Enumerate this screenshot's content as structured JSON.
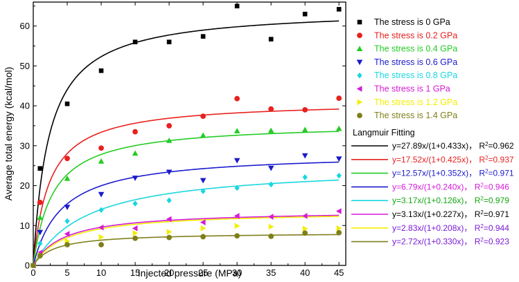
{
  "chart_data": {
    "type": "scatter",
    "xlabel": "Injected pressure (MPa)",
    "ylabel": "Average total energy (kcal/mol)",
    "xlim": [
      0,
      46
    ],
    "ylim": [
      0,
      66
    ],
    "xticks": [
      0,
      5,
      10,
      15,
      20,
      25,
      30,
      35,
      40,
      45
    ],
    "yticks": [
      0,
      10,
      20,
      30,
      40,
      50,
      60
    ],
    "grid": false,
    "legend_position": "right",
    "fit_legend_title": "Langmuir Fitting",
    "series": [
      {
        "name": "The stress is 0 GPa",
        "color": "#000000",
        "marker": "square",
        "x": [
          0,
          1,
          5,
          10,
          15,
          20,
          25,
          30,
          35,
          40,
          45
        ],
        "y": [
          0,
          24.3,
          40.5,
          48.8,
          56.0,
          56.0,
          57.4,
          65.0,
          56.7,
          63.0,
          64.2
        ],
        "fit": {
          "a": 27.89,
          "b": 0.433,
          "label": "y=27.89x/(1+0.433x)， R",
          "r2": "=0.962",
          "color": "#000000",
          "label_color": "#000000"
        }
      },
      {
        "name": "The stress is 0.2 GPa",
        "color": "#e8201e",
        "marker": "circle",
        "x": [
          0,
          1,
          5,
          10,
          15,
          20,
          25,
          30,
          35,
          40,
          45
        ],
        "y": [
          0,
          15.8,
          26.8,
          29.4,
          33.5,
          35.0,
          37.4,
          41.8,
          39.2,
          39.0,
          41.9
        ],
        "fit": {
          "a": 17.52,
          "b": 0.425,
          "label": "y=17.52x/(1+0.425x)， R",
          "r2": "=0.937",
          "color": "#e8201e",
          "label_color": "#e8201e"
        }
      },
      {
        "name": "The stress is 0.4 GPa",
        "color": "#22cc22",
        "marker": "triangle-up",
        "x": [
          0,
          1,
          5,
          10,
          15,
          20,
          25,
          30,
          35,
          40,
          45
        ],
        "y": [
          0,
          12.0,
          21.8,
          26.1,
          28.1,
          31.3,
          32.6,
          33.7,
          33.8,
          34.0,
          34.3
        ],
        "fit": {
          "a": 12.57,
          "b": 0.352,
          "label": "y=12.57x/(1+0.352x)， R",
          "r2": "=0.971",
          "color": "#22cc22",
          "label_color": "#1a1acc"
        }
      },
      {
        "name": "The stress is 0.6 GPa",
        "color": "#1a1acc",
        "marker": "triangle-down",
        "x": [
          0,
          1,
          5,
          10,
          15,
          20,
          25,
          30,
          35,
          40,
          45
        ],
        "y": [
          0,
          8.3,
          14.6,
          17.8,
          21.9,
          23.4,
          21.3,
          26.3,
          24.4,
          27.5,
          26.7
        ],
        "fit": {
          "a": 6.79,
          "b": 0.24,
          "label": "y=6.79x/(1+0.240x)， R",
          "r2": "=0.946",
          "color": "#1a1acc",
          "label_color": "#d61ad6"
        }
      },
      {
        "name": "The stress is 0.8 GPa",
        "color": "#1ad6e0",
        "marker": "diamond",
        "x": [
          0,
          1,
          5,
          10,
          15,
          20,
          25,
          30,
          35,
          40,
          45
        ],
        "y": [
          0,
          5.5,
          11.1,
          13.9,
          15.5,
          16.3,
          18.6,
          19.4,
          20.3,
          22.1,
          22.5
        ],
        "fit": {
          "a": 3.17,
          "b": 0.126,
          "label": "y=3.17x/(1+0.126x)， R",
          "r2": "=0.979",
          "color": "#1ad6e0",
          "label_color": "#11a611"
        }
      },
      {
        "name": "The stress is 1 GPa",
        "color": "#d61ad6",
        "marker": "triangle-left",
        "x": [
          0,
          1,
          5,
          10,
          15,
          20,
          25,
          30,
          35,
          40,
          45
        ],
        "y": [
          0,
          3.2,
          7.9,
          9.5,
          9.3,
          11.6,
          10.8,
          12.4,
          12.2,
          12.4,
          13.6
        ],
        "fit": {
          "a": 3.13,
          "b": 0.227,
          "label": "y=3.13x/(1+0.227x)， R",
          "r2": "=0.971",
          "color": "#d61ad6",
          "label_color": "#000000"
        }
      },
      {
        "name": "The stress is 1.2 GPa",
        "color": "#f2ee00",
        "marker": "triangle-right",
        "x": [
          0,
          1,
          5,
          10,
          15,
          20,
          25,
          30,
          35,
          40,
          45
        ],
        "y": [
          0,
          2.6,
          6.1,
          7.1,
          8.1,
          8.4,
          9.3,
          9.9,
          9.7,
          9.2,
          9.3
        ],
        "fit": {
          "a": 2.83,
          "b": 0.208,
          "label": "y=2.83x/(1+0.208x)， R",
          "r2": "=0.944",
          "color": "#f2ee00",
          "label_color": "#7a1ad6"
        }
      },
      {
        "name": "The stress is 1.4 GPa",
        "color": "#7f7f1a",
        "marker": "circle",
        "x": [
          0,
          1,
          5,
          10,
          15,
          20,
          25,
          30,
          35,
          40,
          45
        ],
        "y": [
          0,
          2.4,
          5.2,
          5.2,
          6.8,
          7.0,
          7.2,
          7.4,
          7.3,
          8.1,
          8.2
        ],
        "fit": {
          "a": 2.72,
          "b": 0.33,
          "label": "y=2.72x/(1+0.330x)， R",
          "r2": "=0.923",
          "color": "#7f7f1a",
          "label_color": "#7a1ad6"
        }
      }
    ]
  }
}
